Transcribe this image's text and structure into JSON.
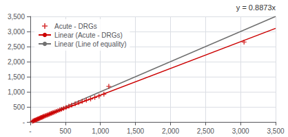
{
  "chart_data": {
    "type": "scatter",
    "annotations": [
      "y = 0.8873x"
    ],
    "xlim": [
      0,
      3500
    ],
    "ylim": [
      0,
      3500
    ],
    "xticks": [
      {
        "value": 0,
        "label": "-"
      },
      500,
      {
        "value": 1000,
        "label": "1,000"
      },
      {
        "value": 1500,
        "label": "1,500"
      },
      {
        "value": 2000,
        "label": "2,000"
      },
      {
        "value": 2500,
        "label": "2,500"
      },
      {
        "value": 3000,
        "label": "3,000"
      },
      {
        "value": 3500,
        "label": "3,500"
      }
    ],
    "yticks": [
      {
        "value": 0,
        "label": "-"
      },
      500,
      {
        "value": 1000,
        "label": "1,000"
      },
      {
        "value": 1500,
        "label": "1,500"
      },
      {
        "value": 2000,
        "label": "2,000"
      },
      {
        "value": 2500,
        "label": "2,500"
      },
      {
        "value": 3000,
        "label": "3,000"
      },
      {
        "value": 3500,
        "label": "3,500"
      }
    ],
    "grid": true,
    "legend": "upper left",
    "series": [
      {
        "name": "Acute - DRGs",
        "type": "scatter",
        "marker": "+",
        "color": "#cc0000",
        "x": [
          30,
          45,
          55,
          65,
          75,
          85,
          95,
          105,
          115,
          125,
          135,
          145,
          155,
          165,
          175,
          185,
          195,
          210,
          225,
          240,
          255,
          270,
          285,
          300,
          315,
          330,
          350,
          370,
          395,
          420,
          445,
          475,
          510,
          550,
          590,
          640,
          690,
          740,
          800,
          860,
          920,
          980,
          1050,
          1120,
          3050
        ],
        "values": [
          20,
          35,
          45,
          55,
          65,
          75,
          85,
          95,
          105,
          115,
          125,
          135,
          145,
          155,
          165,
          175,
          185,
          200,
          215,
          225,
          240,
          255,
          270,
          285,
          300,
          315,
          330,
          350,
          375,
          395,
          420,
          450,
          485,
          520,
          555,
          600,
          640,
          680,
          720,
          760,
          810,
          860,
          920,
          1180,
          2650
        ]
      },
      {
        "name": "Linear (Acute - DRGs)",
        "type": "line",
        "color": "#cc0000",
        "x": [
          0,
          3500
        ],
        "values": [
          0,
          3105.55
        ]
      },
      {
        "name": "Linear (Line of equality)",
        "type": "line",
        "color": "#707070",
        "x": [
          0,
          3500
        ],
        "values": [
          0,
          3500
        ]
      }
    ]
  }
}
